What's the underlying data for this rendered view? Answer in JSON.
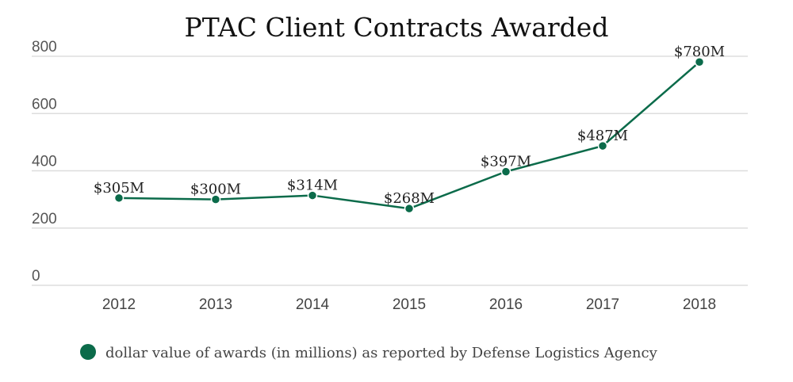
{
  "chart_data": {
    "type": "line",
    "title": "PTAC Client Contracts Awarded",
    "xlabel": "",
    "ylabel": "",
    "categories": [
      "2012",
      "2013",
      "2014",
      "2015",
      "2016",
      "2017",
      "2018"
    ],
    "series": [
      {
        "name": "dollar value of awards (in millions) as reported by Defense Logistics Agency",
        "values": [
          305,
          300,
          314,
          268,
          397,
          487,
          780
        ],
        "labels": [
          "$305M",
          "$300M",
          "$314M",
          "$268M",
          "$397M",
          "$487M",
          "$780M"
        ],
        "color": "#0b6b4a"
      }
    ],
    "ylim": [
      0,
      800
    ],
    "yticks": [
      0,
      200,
      400,
      600,
      800
    ],
    "ytick_labels": [
      "0",
      "200",
      "400",
      "600",
      "800"
    ],
    "grid": true,
    "legend": {
      "position": "bottom",
      "entries": [
        "dollar value of awards (in millions) as reported by Defense Logistics Agency"
      ]
    }
  }
}
